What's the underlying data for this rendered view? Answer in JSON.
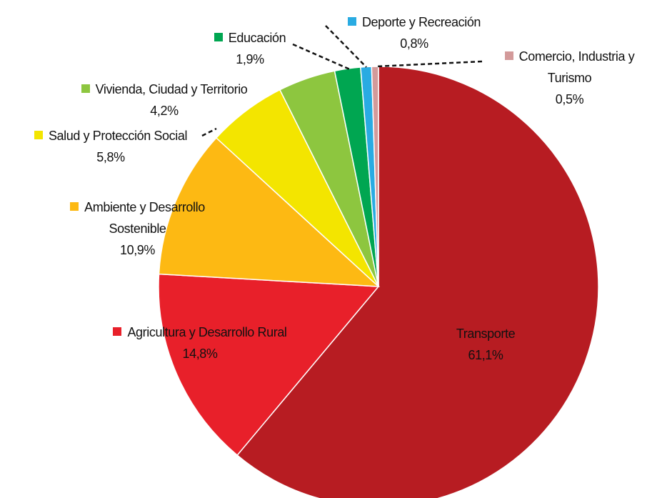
{
  "chart_data": {
    "type": "pie",
    "categories": [
      "Transporte",
      "Agricultura y Desarrollo Rural",
      "Ambiente y Desarrollo Sostenible",
      "Salud y Protección Social",
      "Vivienda, Ciudad y Territorio",
      "Educación",
      "Deporte y Recreación",
      "Comercio, Industria y Turismo"
    ],
    "values": [
      61.1,
      14.8,
      10.9,
      5.8,
      4.2,
      1.9,
      0.8,
      0.5
    ],
    "value_labels": [
      "61,1%",
      "14,8%",
      "10,9%",
      "5,8%",
      "4,2%",
      "1,9%",
      "0,8%",
      "0,5%"
    ],
    "colors": [
      "#b71c22",
      "#e8202a",
      "#fdb913",
      "#f3e500",
      "#8dc63f",
      "#00a651",
      "#29abe2",
      "#d39a9a"
    ]
  }
}
